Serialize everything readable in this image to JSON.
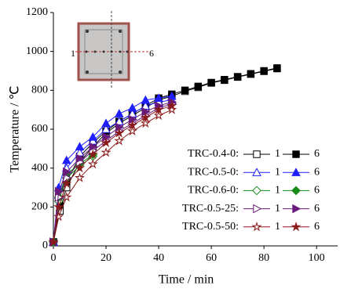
{
  "chart_data": {
    "type": "line",
    "x_label": "Time / min",
    "y_label": "Temperature / ℃",
    "xlim": [
      0,
      108
    ],
    "ylim": [
      0,
      1200
    ],
    "xticks": [
      0,
      20,
      40,
      60,
      80,
      100
    ],
    "yticks": [
      0,
      200,
      400,
      600,
      800,
      1000,
      1200
    ],
    "series": [
      {
        "name": "TRC-0.4-0:",
        "marker": "square",
        "color": "#000000",
        "curves": [
          {
            "name": "1",
            "x": [
              0,
              2.5,
              5,
              10,
              15,
              20,
              25,
              30,
              35,
              40,
              45,
              50,
              55,
              60,
              65,
              70,
              75,
              80,
              85
            ],
            "values": [
              20,
              180,
              300,
              430,
              510,
              580,
              630,
              670,
              710,
              750,
              770,
              795,
              815,
              838,
              852,
              868,
              883,
              898,
              912
            ]
          },
          {
            "name": "6",
            "x": [
              0,
              2.5,
              5,
              10,
              15,
              20,
              25,
              30,
              35,
              40,
              45,
              50,
              55,
              60,
              65,
              70,
              75,
              80,
              85
            ],
            "values": [
              20,
              210,
              330,
              460,
              530,
              590,
              640,
              680,
              720,
              760,
              780,
              800,
              820,
              840,
              855,
              870,
              885,
              900,
              915
            ]
          }
        ]
      },
      {
        "name": "TRC-0.5-0:",
        "marker": "triangle",
        "color": "#1f1fff",
        "curves": [
          {
            "name": "1",
            "x": [
              0,
              2,
              5,
              10,
              15,
              20,
              25,
              30,
              35,
              40,
              45
            ],
            "values": [
              20,
              260,
              400,
              480,
              540,
              600,
              640,
              680,
              720,
              740,
              750
            ]
          },
          {
            "name": "6",
            "x": [
              0,
              2,
              5,
              10,
              15,
              20,
              25,
              30,
              35,
              40,
              45
            ],
            "values": [
              20,
              300,
              440,
              510,
              560,
              630,
              680,
              710,
              750,
              760,
              770
            ]
          }
        ]
      },
      {
        "name": "TRC-0.6-0:",
        "marker": "diamond",
        "color": "#1a8a1a",
        "curves": [
          {
            "name": "1",
            "x": [
              0,
              2,
              5,
              10,
              15
            ],
            "values": [
              20,
              230,
              350,
              410,
              460
            ]
          },
          {
            "name": "6",
            "x": [
              0,
              2,
              5,
              10,
              15
            ],
            "values": [
              20,
              250,
              370,
              420,
              470
            ]
          }
        ]
      },
      {
        "name": "TRC-0.5-25:",
        "marker": "right",
        "color": "#6a1a7a",
        "curves": [
          {
            "name": "1",
            "x": [
              0,
              2,
              5,
              10,
              15,
              20,
              25,
              30,
              35,
              40,
              45
            ],
            "values": [
              20,
              250,
              350,
              430,
              490,
              540,
              590,
              630,
              670,
              710,
              730
            ]
          },
          {
            "name": "6",
            "x": [
              0,
              2,
              5,
              10,
              15,
              20,
              25,
              30,
              35,
              40,
              45
            ],
            "values": [
              20,
              280,
              380,
              450,
              510,
              560,
              610,
              650,
              690,
              720,
              740
            ]
          }
        ]
      },
      {
        "name": "TRC-0.5-50:",
        "marker": "star",
        "color": "#8b1a1a",
        "curves": [
          {
            "name": "1",
            "x": [
              0,
              2,
              5,
              10,
              15,
              20,
              25,
              30,
              35,
              40,
              45
            ],
            "values": [
              20,
              150,
              250,
              350,
              420,
              480,
              540,
              590,
              630,
              670,
              700
            ]
          },
          {
            "name": "6",
            "x": [
              0,
              2,
              5,
              10,
              15,
              20,
              25,
              30,
              35,
              40,
              45
            ],
            "values": [
              20,
              200,
              320,
              400,
              470,
              530,
              580,
              620,
              660,
              700,
              720
            ]
          }
        ]
      }
    ]
  },
  "inset": {
    "left_label": "1",
    "right_label": "6"
  }
}
